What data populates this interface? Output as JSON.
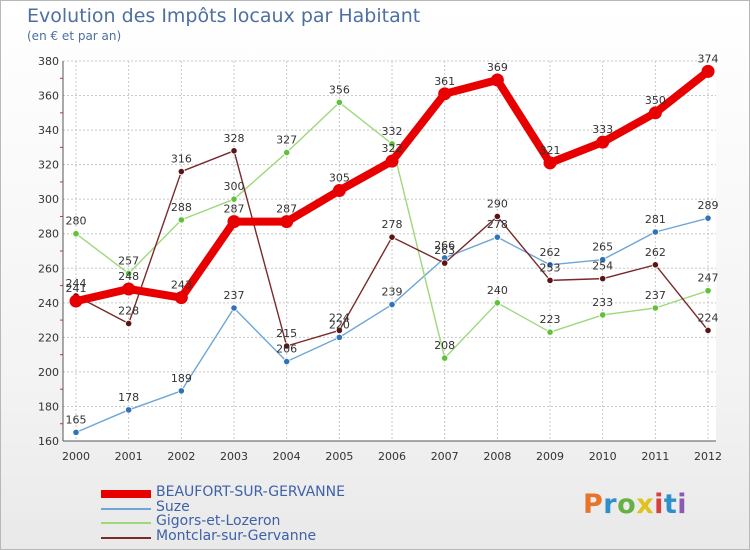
{
  "title": "Evolution des Impôts locaux par Habitant",
  "subtitle": "(en € et par an)",
  "logo": {
    "text": "Proxiti",
    "colors": [
      "#e8742a",
      "#2f8fcb",
      "#67b043",
      "#e0c21e",
      "#d9403c",
      "#2f8fcb",
      "#8a5bb0"
    ]
  },
  "chart_data": {
    "type": "line",
    "title": "Evolution des Impôts locaux par Habitant",
    "subtitle": "(en € et par an)",
    "x": [
      "2000",
      "2001",
      "2002",
      "2003",
      "2004",
      "2005",
      "2006",
      "2007",
      "2008",
      "2009",
      "2010",
      "2011",
      "2012"
    ],
    "ylim": [
      160,
      380
    ],
    "yticks": [
      160,
      180,
      200,
      220,
      240,
      260,
      280,
      300,
      320,
      340,
      360,
      380
    ],
    "grid": true,
    "legend_position": "bottom",
    "series": [
      {
        "name": "BEAUFORT-SUR-GERVANNE",
        "color": "#e80000",
        "marker_color": "#e80000",
        "values": [
          241,
          248,
          243,
          287,
          287,
          305,
          322,
          361,
          369,
          321,
          333,
          350,
          374
        ]
      },
      {
        "name": "Suze",
        "color": "#6ea6d6",
        "marker_color": "#2f73b8",
        "values": [
          165,
          178,
          189,
          237,
          206,
          220,
          239,
          266,
          278,
          262,
          265,
          281,
          289
        ]
      },
      {
        "name": "Gigors-et-Lozeron",
        "color": "#9dd97a",
        "marker_color": "#5fc23a",
        "values": [
          280,
          257,
          288,
          300,
          327,
          356,
          332,
          208,
          240,
          223,
          233,
          237,
          247
        ]
      },
      {
        "name": "Montclar-sur-Gervanne",
        "color": "#7a2a2a",
        "marker_color": "#5a1414",
        "values": [
          244,
          228,
          316,
          328,
          215,
          224,
          278,
          263,
          290,
          253,
          254,
          262,
          224
        ]
      }
    ]
  }
}
